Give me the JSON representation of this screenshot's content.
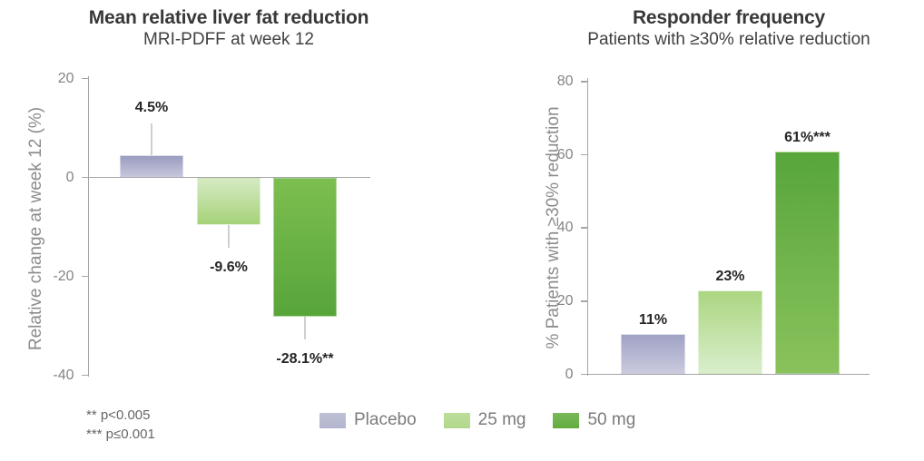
{
  "figure": {
    "footnote1": "** p<0.005",
    "footnote2": "*** p≤0.001",
    "legend": [
      {
        "label": "Placebo",
        "color": "#b3b5ce"
      },
      {
        "label": "25 mg",
        "color": "#b1d88a"
      },
      {
        "label": "50 mg",
        "color": "#62ad3e"
      }
    ]
  },
  "chart_data": [
    {
      "type": "bar",
      "title": "Mean relative liver fat reduction",
      "subtitle": "MRI-PDFF at week 12",
      "xlabel": "",
      "ylabel": "Relative change at week 12 (%)",
      "ylim": [
        -40,
        20
      ],
      "yticks": [
        20,
        0,
        -20,
        -40
      ],
      "grid": false,
      "legend_position": "bottom",
      "categories": [
        "Placebo",
        "25 mg",
        "50 mg"
      ],
      "values": [
        4.5,
        -9.6,
        -28.1
      ],
      "bar_labels": [
        "4.5%",
        "-9.6%",
        "-28.1%**"
      ],
      "error_bars_est": [
        6.5,
        4.6,
        4.6
      ],
      "bar_gradients": [
        [
          "#9a9cc1",
          "#c4c5d9"
        ],
        [
          "#d5ebc3",
          "#a6d279"
        ],
        [
          "#7dbe50",
          "#57a53a"
        ]
      ]
    },
    {
      "type": "bar",
      "title": "Responder frequency",
      "subtitle": "Patients with ≥30% relative reduction",
      "xlabel": "",
      "ylabel": "% Patients with ≥30% reduction",
      "ylim": [
        0,
        80
      ],
      "yticks": [
        80,
        60,
        40,
        20,
        0
      ],
      "grid": false,
      "legend_position": "bottom",
      "categories": [
        "Placebo",
        "25 mg",
        "50 mg"
      ],
      "values": [
        11,
        23,
        61
      ],
      "bar_labels": [
        "11%",
        "23%",
        "61%***"
      ],
      "error_bars_est": [
        0,
        0,
        0
      ],
      "bar_gradients": [
        [
          "#a0a2c4",
          "#c9cadd"
        ],
        [
          "#abd681",
          "#d9eecb"
        ],
        [
          "#57a63b",
          "#8ac25c"
        ]
      ]
    }
  ]
}
